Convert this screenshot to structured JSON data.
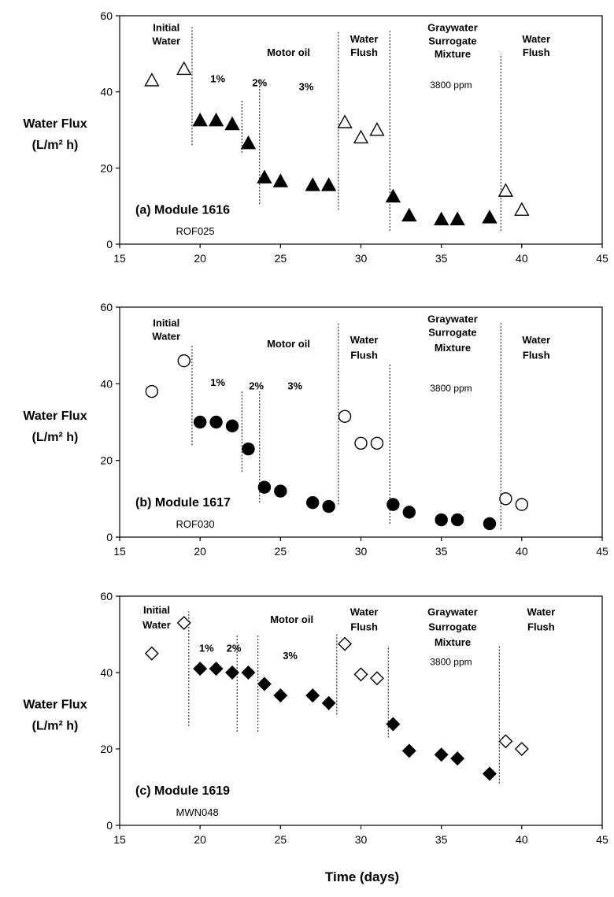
{
  "figure": {
    "xlabel": "Time (days)"
  },
  "chart_data": [
    {
      "type": "scatter",
      "title": "(a) Module 1616",
      "subtitle": "ROF025",
      "ylabel_line1": "Water Flux",
      "ylabel_line2": "(L/m² h)",
      "xlim": [
        15,
        45
      ],
      "ylim": [
        0,
        60
      ],
      "xticks": [
        15,
        20,
        25,
        30,
        35,
        40,
        45
      ],
      "yticks": [
        0,
        20,
        40,
        60
      ],
      "marker": "triangle",
      "series": [
        {
          "name": "Initial Water",
          "filled": false,
          "x": [
            17,
            19
          ],
          "y": [
            43,
            46
          ]
        },
        {
          "name": "Motor oil",
          "filled": true,
          "x": [
            20,
            21,
            22,
            23,
            24,
            25,
            27,
            28
          ],
          "y": [
            32.5,
            32.5,
            31.5,
            26.5,
            17.5,
            16.5,
            15.5,
            15.5
          ]
        },
        {
          "name": "Water Flush",
          "filled": false,
          "x": [
            29,
            30,
            31
          ],
          "y": [
            32,
            28,
            30
          ]
        },
        {
          "name": "Graywater Surrogate Mixture",
          "filled": true,
          "x": [
            32,
            33,
            35,
            36,
            38
          ],
          "y": [
            12.5,
            7.5,
            6.5,
            6.5,
            7
          ]
        },
        {
          "name": "Water Flush",
          "filled": false,
          "x": [
            39,
            40
          ],
          "y": [
            14,
            9
          ]
        }
      ],
      "phase_lines": [
        {
          "x": 19.5,
          "y": [
            26,
            57
          ]
        },
        {
          "x": 22.6,
          "y": [
            24,
            38
          ]
        },
        {
          "x": 23.7,
          "y": [
            10.5,
            43
          ]
        },
        {
          "x": 28.6,
          "y": [
            9,
            56
          ]
        },
        {
          "x": 31.8,
          "y": [
            3.5,
            56
          ]
        },
        {
          "x": 38.7,
          "y": [
            3.5,
            50
          ]
        }
      ],
      "annotations": [
        {
          "text": "Initial",
          "x": 17.9,
          "y": 56,
          "style": "bold"
        },
        {
          "text": "Water",
          "x": 17.9,
          "y": 52.5,
          "style": "bold"
        },
        {
          "text": "Motor oil",
          "x": 25.5,
          "y": 49.5,
          "style": "bold"
        },
        {
          "text": "1%",
          "x": 21.1,
          "y": 42.5,
          "style": "bold"
        },
        {
          "text": "2%",
          "x": 23.7,
          "y": 41.5,
          "style": "bold"
        },
        {
          "text": "3%",
          "x": 26.6,
          "y": 40.5,
          "style": "bold"
        },
        {
          "text": "Water",
          "x": 30.2,
          "y": 53,
          "style": "bold"
        },
        {
          "text": "Flush",
          "x": 30.2,
          "y": 49.5,
          "style": "bold"
        },
        {
          "text": "Graywater",
          "x": 35.7,
          "y": 56,
          "style": "bold"
        },
        {
          "text": "Surrogate",
          "x": 35.7,
          "y": 52.5,
          "style": "bold"
        },
        {
          "text": "Mixture",
          "x": 35.7,
          "y": 49,
          "style": "bold"
        },
        {
          "text": "3800 ppm",
          "x": 35.6,
          "y": 41,
          "style": "normal"
        },
        {
          "text": "Water",
          "x": 40.9,
          "y": 53,
          "style": "bold"
        },
        {
          "text": "Flush",
          "x": 40.9,
          "y": 49.5,
          "style": "bold"
        }
      ]
    },
    {
      "type": "scatter",
      "title": "(b) Module 1617",
      "subtitle": "ROF030",
      "ylabel_line1": "Water Flux",
      "ylabel_line2": "(L/m² h)",
      "xlim": [
        15,
        45
      ],
      "ylim": [
        0,
        60
      ],
      "xticks": [
        15,
        20,
        25,
        30,
        35,
        40,
        45
      ],
      "yticks": [
        0,
        20,
        40,
        60
      ],
      "marker": "circle",
      "series": [
        {
          "name": "Initial Water",
          "filled": false,
          "x": [
            17,
            19
          ],
          "y": [
            38,
            46
          ]
        },
        {
          "name": "Motor oil",
          "filled": true,
          "x": [
            20,
            21,
            22,
            23,
            24,
            25,
            27,
            28
          ],
          "y": [
            30,
            30,
            29,
            23,
            13,
            12,
            9,
            8
          ]
        },
        {
          "name": "Water Flush",
          "filled": false,
          "x": [
            29,
            30,
            31
          ],
          "y": [
            31.5,
            24.5,
            24.5
          ]
        },
        {
          "name": "Graywater Surrogate Mixture",
          "filled": true,
          "x": [
            32,
            33,
            35,
            36,
            38
          ],
          "y": [
            8.5,
            6.5,
            4.5,
            4.5,
            3.5
          ]
        },
        {
          "name": "Water Flush",
          "filled": false,
          "x": [
            39,
            40
          ],
          "y": [
            10,
            8.5
          ]
        }
      ],
      "phase_lines": [
        {
          "x": 19.5,
          "y": [
            24,
            50
          ]
        },
        {
          "x": 22.6,
          "y": [
            17,
            38
          ]
        },
        {
          "x": 23.7,
          "y": [
            9,
            38
          ]
        },
        {
          "x": 28.6,
          "y": [
            8.5,
            56
          ]
        },
        {
          "x": 31.8,
          "y": [
            3.5,
            45
          ]
        },
        {
          "x": 38.7,
          "y": [
            2,
            56
          ]
        }
      ],
      "annotations": [
        {
          "text": "Initial",
          "x": 17.9,
          "y": 55,
          "style": "bold"
        },
        {
          "text": "Water",
          "x": 17.9,
          "y": 51.5,
          "style": "bold"
        },
        {
          "text": "Motor oil",
          "x": 25.5,
          "y": 49.5,
          "style": "bold"
        },
        {
          "text": "1%",
          "x": 21.1,
          "y": 39.5,
          "style": "bold"
        },
        {
          "text": "2%",
          "x": 23.5,
          "y": 38.5,
          "style": "bold"
        },
        {
          "text": "3%",
          "x": 25.9,
          "y": 38.5,
          "style": "bold"
        },
        {
          "text": "Water",
          "x": 30.2,
          "y": 50.5,
          "style": "bold"
        },
        {
          "text": "Flush",
          "x": 30.2,
          "y": 46.5,
          "style": "bold"
        },
        {
          "text": "Graywater",
          "x": 35.7,
          "y": 56,
          "style": "bold"
        },
        {
          "text": "Surrogate",
          "x": 35.7,
          "y": 52.5,
          "style": "bold"
        },
        {
          "text": "Mixture",
          "x": 35.7,
          "y": 48.5,
          "style": "bold"
        },
        {
          "text": "3800 ppm",
          "x": 35.6,
          "y": 38,
          "style": "normal"
        },
        {
          "text": "Water",
          "x": 40.9,
          "y": 50.5,
          "style": "bold"
        },
        {
          "text": "Flush",
          "x": 40.9,
          "y": 46.5,
          "style": "bold"
        }
      ]
    },
    {
      "type": "scatter",
      "title": "(c) Module 1619",
      "subtitle": "MWN048",
      "ylabel_line1": "Water Flux",
      "ylabel_line2": "(L/m² h)",
      "xlim": [
        15,
        45
      ],
      "ylim": [
        0,
        60
      ],
      "xticks": [
        15,
        20,
        25,
        30,
        35,
        40,
        45
      ],
      "yticks": [
        0,
        20,
        40,
        60
      ],
      "marker": "diamond",
      "series": [
        {
          "name": "Initial Water",
          "filled": false,
          "x": [
            17,
            19
          ],
          "y": [
            45,
            53
          ]
        },
        {
          "name": "Motor oil",
          "filled": true,
          "x": [
            20,
            21,
            22,
            23,
            24,
            25,
            27,
            28
          ],
          "y": [
            41,
            41,
            40,
            40,
            37,
            34,
            34,
            32
          ]
        },
        {
          "name": "Water Flush",
          "filled": false,
          "x": [
            29,
            30,
            31
          ],
          "y": [
            47.5,
            39.5,
            38.5
          ]
        },
        {
          "name": "Graywater Surrogate Mixture",
          "filled": true,
          "x": [
            32,
            33,
            35,
            36,
            38
          ],
          "y": [
            26.5,
            19.5,
            18.5,
            17.5,
            13.5
          ]
        },
        {
          "name": "Water Flush",
          "filled": false,
          "x": [
            39,
            40
          ],
          "y": [
            22,
            20
          ]
        }
      ],
      "phase_lines": [
        {
          "x": 19.3,
          "y": [
            26,
            56
          ]
        },
        {
          "x": 22.3,
          "y": [
            24.5,
            50
          ]
        },
        {
          "x": 23.6,
          "y": [
            24.5,
            50
          ]
        },
        {
          "x": 28.5,
          "y": [
            29,
            50
          ]
        },
        {
          "x": 31.7,
          "y": [
            23,
            47
          ]
        },
        {
          "x": 38.6,
          "y": [
            11,
            47
          ]
        }
      ],
      "annotations": [
        {
          "text": "Initial",
          "x": 17.3,
          "y": 55.5,
          "style": "bold"
        },
        {
          "text": "Water",
          "x": 17.3,
          "y": 51.5,
          "style": "bold"
        },
        {
          "text": "Motor oil",
          "x": 25.7,
          "y": 53,
          "style": "bold"
        },
        {
          "text": "1%",
          "x": 20.4,
          "y": 45.5,
          "style": "bold"
        },
        {
          "text": "2%",
          "x": 22.1,
          "y": 45.5,
          "style": "bold"
        },
        {
          "text": "3%",
          "x": 25.6,
          "y": 43.5,
          "style": "bold"
        },
        {
          "text": "Water",
          "x": 30.2,
          "y": 55,
          "style": "bold"
        },
        {
          "text": "Flush",
          "x": 30.2,
          "y": 51,
          "style": "bold"
        },
        {
          "text": "Graywater",
          "x": 35.7,
          "y": 55,
          "style": "bold"
        },
        {
          "text": "Surrogate",
          "x": 35.7,
          "y": 51,
          "style": "bold"
        },
        {
          "text": "Mixture",
          "x": 35.7,
          "y": 47,
          "style": "bold"
        },
        {
          "text": "3800 ppm",
          "x": 35.6,
          "y": 42,
          "style": "normal"
        },
        {
          "text": "Water",
          "x": 41.2,
          "y": 55,
          "style": "bold"
        },
        {
          "text": "Flush",
          "x": 41.2,
          "y": 51,
          "style": "bold"
        }
      ]
    }
  ]
}
